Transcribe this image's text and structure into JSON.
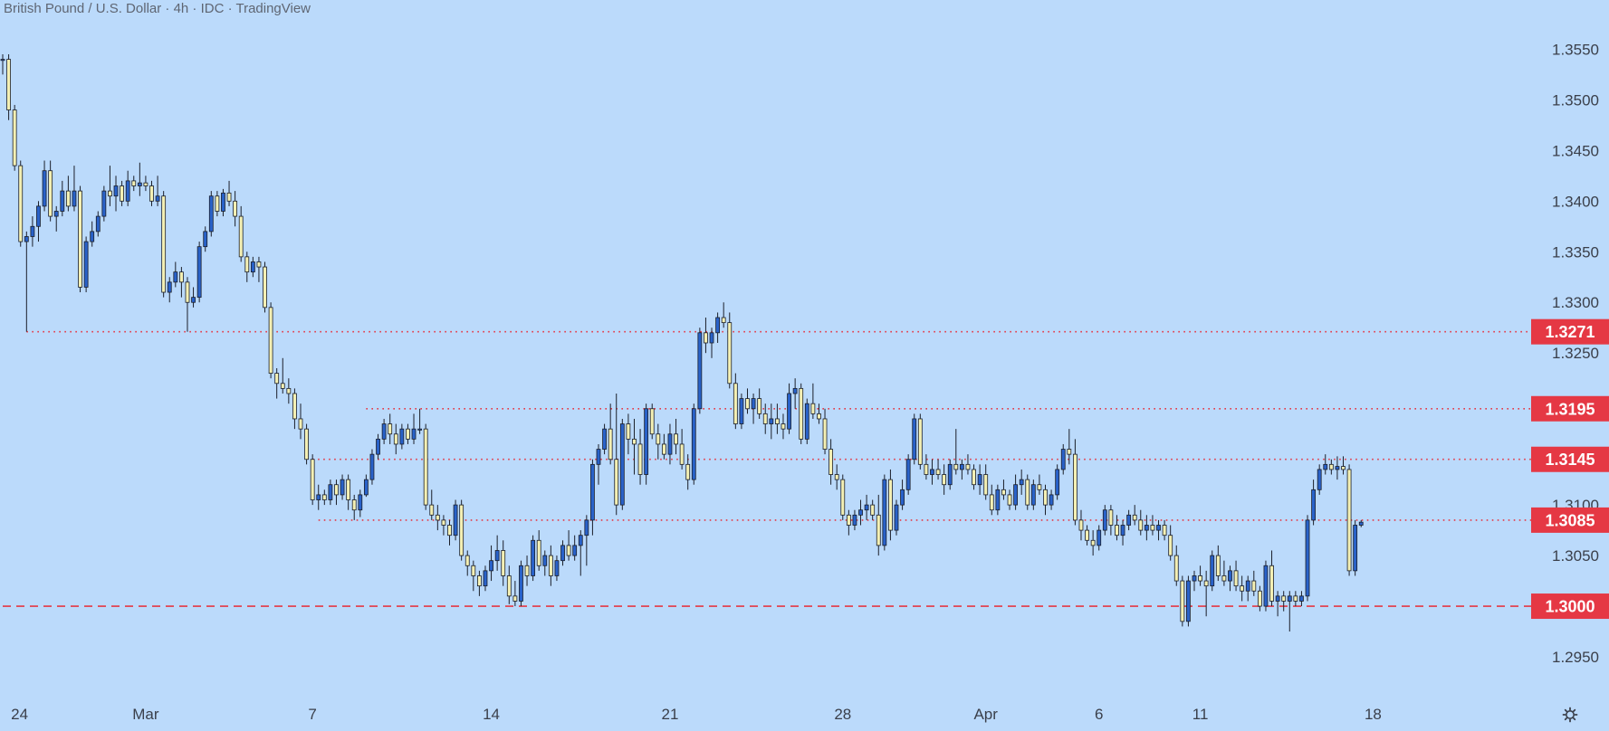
{
  "header": {
    "title": "British Pound / U.S. Dollar · 4h · IDC · TradingView"
  },
  "icons": {
    "settings": "gear-icon"
  },
  "colors": {
    "background": "#bbdafb",
    "candle_up": "#2962c9",
    "candle_down": "#f4f0b4",
    "candle_outline": "#1b1f2a",
    "level_line": "#e53844",
    "level_label_bg": "#e53844",
    "axis_text": "#3a3f4a"
  },
  "chart_data": {
    "type": "candlestick",
    "title": "British Pound / U.S. Dollar",
    "interval": "4h",
    "source": "IDC",
    "y_ticks": [
      "1.2950",
      "1.3000",
      "1.3050",
      "1.3100",
      "1.3150",
      "1.3200",
      "1.3250",
      "1.3300",
      "1.3350",
      "1.3400",
      "1.3450",
      "1.3500",
      "1.3550"
    ],
    "ylim": [
      1.2925,
      1.357
    ],
    "x_ticks": [
      "24",
      "Mar",
      "7",
      "14",
      "21",
      "28",
      "Apr",
      "6",
      "11",
      "18"
    ],
    "x_tick_bar_index": [
      1,
      24,
      52,
      82,
      112,
      141,
      165,
      184,
      201,
      230
    ],
    "levels": [
      {
        "value": 1.3271,
        "label": "1.3271",
        "style": "dotted",
        "start_bar": 4
      },
      {
        "value": 1.3195,
        "label": "1.3195",
        "style": "dotted",
        "start_bar": 61
      },
      {
        "value": 1.3145,
        "label": "1.3145",
        "style": "dotted",
        "start_bar": 52
      },
      {
        "value": 1.3085,
        "label": "1.3085",
        "style": "dotted",
        "start_bar": 53
      },
      {
        "value": 1.3,
        "label": "1.3000",
        "style": "dashed",
        "start_bar": 0
      }
    ],
    "candles": [
      [
        1.354,
        1.3545,
        1.3525,
        1.354
      ],
      [
        1.354,
        1.3545,
        1.348,
        1.349
      ],
      [
        1.349,
        1.3495,
        1.343,
        1.3435
      ],
      [
        1.3435,
        1.344,
        1.3355,
        1.336
      ],
      [
        1.336,
        1.337,
        1.3271,
        1.3365
      ],
      [
        1.3365,
        1.3385,
        1.3355,
        1.3375
      ],
      [
        1.3375,
        1.34,
        1.336,
        1.3395
      ],
      [
        1.3395,
        1.344,
        1.339,
        1.343
      ],
      [
        1.343,
        1.344,
        1.338,
        1.3385
      ],
      [
        1.3385,
        1.3395,
        1.337,
        1.339
      ],
      [
        1.339,
        1.342,
        1.3385,
        1.341
      ],
      [
        1.341,
        1.3425,
        1.339,
        1.3395
      ],
      [
        1.3395,
        1.3435,
        1.339,
        1.341
      ],
      [
        1.341,
        1.3415,
        1.331,
        1.3315
      ],
      [
        1.3315,
        1.3365,
        1.331,
        1.336
      ],
      [
        1.336,
        1.338,
        1.3355,
        1.337
      ],
      [
        1.337,
        1.339,
        1.3365,
        1.3385
      ],
      [
        1.3385,
        1.3415,
        1.338,
        1.341
      ],
      [
        1.341,
        1.3435,
        1.3395,
        1.3405
      ],
      [
        1.3405,
        1.3425,
        1.339,
        1.3415
      ],
      [
        1.3415,
        1.342,
        1.3395,
        1.34
      ],
      [
        1.34,
        1.343,
        1.3395,
        1.342
      ],
      [
        1.342,
        1.3425,
        1.341,
        1.3415
      ],
      [
        1.3415,
        1.3438,
        1.3405,
        1.3418
      ],
      [
        1.3418,
        1.3425,
        1.341,
        1.3415
      ],
      [
        1.3415,
        1.342,
        1.3395,
        1.34
      ],
      [
        1.34,
        1.3425,
        1.3395,
        1.3405
      ],
      [
        1.3405,
        1.341,
        1.3305,
        1.331
      ],
      [
        1.331,
        1.3325,
        1.33,
        1.332
      ],
      [
        1.332,
        1.334,
        1.3315,
        1.333
      ],
      [
        1.333,
        1.3335,
        1.3305,
        1.332
      ],
      [
        1.332,
        1.3325,
        1.3271,
        1.33
      ],
      [
        1.33,
        1.3315,
        1.3295,
        1.3305
      ],
      [
        1.3305,
        1.336,
        1.33,
        1.3355
      ],
      [
        1.3355,
        1.3375,
        1.335,
        1.337
      ],
      [
        1.337,
        1.341,
        1.3365,
        1.3405
      ],
      [
        1.3405,
        1.341,
        1.3385,
        1.339
      ],
      [
        1.339,
        1.3412,
        1.3385,
        1.3408
      ],
      [
        1.3408,
        1.342,
        1.3395,
        1.34
      ],
      [
        1.34,
        1.341,
        1.3375,
        1.3385
      ],
      [
        1.3385,
        1.3395,
        1.334,
        1.3345
      ],
      [
        1.3345,
        1.335,
        1.332,
        1.333
      ],
      [
        1.333,
        1.3345,
        1.3325,
        1.334
      ],
      [
        1.334,
        1.3345,
        1.332,
        1.3335
      ],
      [
        1.3335,
        1.334,
        1.329,
        1.3295
      ],
      [
        1.3295,
        1.33,
        1.3225,
        1.323
      ],
      [
        1.323,
        1.3235,
        1.3205,
        1.322
      ],
      [
        1.322,
        1.3245,
        1.321,
        1.3215
      ],
      [
        1.3215,
        1.3225,
        1.32,
        1.321
      ],
      [
        1.321,
        1.3215,
        1.3175,
        1.3185
      ],
      [
        1.3185,
        1.32,
        1.3165,
        1.3175
      ],
      [
        1.3175,
        1.318,
        1.314,
        1.3145
      ],
      [
        1.3145,
        1.315,
        1.31,
        1.3105
      ],
      [
        1.3105,
        1.312,
        1.3095,
        1.311
      ],
      [
        1.311,
        1.3115,
        1.31,
        1.3105
      ],
      [
        1.3105,
        1.3125,
        1.31,
        1.312
      ],
      [
        1.312,
        1.3125,
        1.31,
        1.311
      ],
      [
        1.311,
        1.313,
        1.3105,
        1.3125
      ],
      [
        1.3125,
        1.313,
        1.3095,
        1.3105
      ],
      [
        1.3105,
        1.311,
        1.3085,
        1.3095
      ],
      [
        1.3095,
        1.3115,
        1.3088,
        1.311
      ],
      [
        1.311,
        1.313,
        1.3108,
        1.3125
      ],
      [
        1.3125,
        1.3155,
        1.312,
        1.315
      ],
      [
        1.315,
        1.317,
        1.3145,
        1.3165
      ],
      [
        1.3165,
        1.3185,
        1.316,
        1.318
      ],
      [
        1.318,
        1.319,
        1.316,
        1.317
      ],
      [
        1.317,
        1.318,
        1.315,
        1.316
      ],
      [
        1.316,
        1.318,
        1.3155,
        1.3175
      ],
      [
        1.3175,
        1.318,
        1.316,
        1.3165
      ],
      [
        1.3165,
        1.319,
        1.316,
        1.3175
      ],
      [
        1.3175,
        1.3195,
        1.317,
        1.3175
      ],
      [
        1.3175,
        1.318,
        1.3095,
        1.31
      ],
      [
        1.31,
        1.3115,
        1.3085,
        1.309
      ],
      [
        1.309,
        1.31,
        1.3075,
        1.3085
      ],
      [
        1.3085,
        1.309,
        1.307,
        1.308
      ],
      [
        1.308,
        1.3085,
        1.306,
        1.307
      ],
      [
        1.307,
        1.3105,
        1.3065,
        1.31
      ],
      [
        1.31,
        1.3105,
        1.3045,
        1.305
      ],
      [
        1.305,
        1.3055,
        1.303,
        1.304
      ],
      [
        1.304,
        1.3045,
        1.3015,
        1.303
      ],
      [
        1.303,
        1.3035,
        1.301,
        1.302
      ],
      [
        1.302,
        1.304,
        1.3015,
        1.3035
      ],
      [
        1.3035,
        1.306,
        1.3025,
        1.3045
      ],
      [
        1.3045,
        1.307,
        1.3035,
        1.3055
      ],
      [
        1.3055,
        1.3065,
        1.302,
        1.303
      ],
      [
        1.303,
        1.304,
        1.3002,
        1.301
      ],
      [
        1.301,
        1.3025,
        1.3,
        1.3005
      ],
      [
        1.3005,
        1.3045,
        1.3,
        1.304
      ],
      [
        1.304,
        1.305,
        1.302,
        1.303
      ],
      [
        1.303,
        1.307,
        1.3025,
        1.3065
      ],
      [
        1.3065,
        1.3075,
        1.3035,
        1.304
      ],
      [
        1.304,
        1.3055,
        1.303,
        1.305
      ],
      [
        1.305,
        1.306,
        1.302,
        1.303
      ],
      [
        1.303,
        1.305,
        1.3025,
        1.3045
      ],
      [
        1.3045,
        1.3065,
        1.304,
        1.306
      ],
      [
        1.306,
        1.3075,
        1.3045,
        1.305
      ],
      [
        1.305,
        1.307,
        1.3045,
        1.306
      ],
      [
        1.306,
        1.3075,
        1.303,
        1.307
      ],
      [
        1.307,
        1.309,
        1.304,
        1.3085
      ],
      [
        1.3085,
        1.3145,
        1.307,
        1.314
      ],
      [
        1.314,
        1.316,
        1.312,
        1.3155
      ],
      [
        1.3155,
        1.318,
        1.315,
        1.3175
      ],
      [
        1.3175,
        1.32,
        1.314,
        1.3145
      ],
      [
        1.3145,
        1.321,
        1.309,
        1.31
      ],
      [
        1.31,
        1.3185,
        1.3095,
        1.318
      ],
      [
        1.318,
        1.319,
        1.315,
        1.3165
      ],
      [
        1.3165,
        1.3185,
        1.313,
        1.316
      ],
      [
        1.316,
        1.3175,
        1.312,
        1.313
      ],
      [
        1.313,
        1.32,
        1.312,
        1.3195
      ],
      [
        1.3195,
        1.32,
        1.3165,
        1.317
      ],
      [
        1.317,
        1.318,
        1.3145,
        1.316
      ],
      [
        1.316,
        1.317,
        1.3145,
        1.315
      ],
      [
        1.315,
        1.318,
        1.314,
        1.317
      ],
      [
        1.317,
        1.3185,
        1.315,
        1.316
      ],
      [
        1.316,
        1.3175,
        1.3135,
        1.314
      ],
      [
        1.314,
        1.315,
        1.3115,
        1.3125
      ],
      [
        1.3125,
        1.32,
        1.312,
        1.3195
      ],
      [
        1.3195,
        1.3275,
        1.319,
        1.327
      ],
      [
        1.327,
        1.3285,
        1.325,
        1.326
      ],
      [
        1.326,
        1.3275,
        1.3245,
        1.327
      ],
      [
        1.327,
        1.329,
        1.326,
        1.3285
      ],
      [
        1.3285,
        1.33,
        1.3275,
        1.328
      ],
      [
        1.328,
        1.329,
        1.3215,
        1.322
      ],
      [
        1.322,
        1.323,
        1.3175,
        1.318
      ],
      [
        1.318,
        1.321,
        1.3175,
        1.3205
      ],
      [
        1.3205,
        1.3215,
        1.319,
        1.3195
      ],
      [
        1.3195,
        1.321,
        1.318,
        1.3205
      ],
      [
        1.3205,
        1.3215,
        1.3185,
        1.319
      ],
      [
        1.319,
        1.32,
        1.317,
        1.318
      ],
      [
        1.318,
        1.32,
        1.3165,
        1.3185
      ],
      [
        1.3185,
        1.32,
        1.317,
        1.318
      ],
      [
        1.318,
        1.319,
        1.3165,
        1.3175
      ],
      [
        1.3175,
        1.322,
        1.317,
        1.321
      ],
      [
        1.321,
        1.3225,
        1.3195,
        1.3215
      ],
      [
        1.3215,
        1.322,
        1.316,
        1.3165
      ],
      [
        1.3165,
        1.3205,
        1.316,
        1.32
      ],
      [
        1.32,
        1.322,
        1.3185,
        1.319
      ],
      [
        1.319,
        1.32,
        1.318,
        1.3185
      ],
      [
        1.3185,
        1.3195,
        1.315,
        1.3155
      ],
      [
        1.3155,
        1.3165,
        1.312,
        1.313
      ],
      [
        1.313,
        1.314,
        1.3115,
        1.3125
      ],
      [
        1.3125,
        1.313,
        1.3085,
        1.309
      ],
      [
        1.309,
        1.3095,
        1.307,
        1.308
      ],
      [
        1.308,
        1.3095,
        1.3075,
        1.309
      ],
      [
        1.309,
        1.3105,
        1.308,
        1.3095
      ],
      [
        1.3095,
        1.311,
        1.3085,
        1.31
      ],
      [
        1.31,
        1.3105,
        1.3085,
        1.309
      ],
      [
        1.309,
        1.311,
        1.305,
        1.306
      ],
      [
        1.306,
        1.313,
        1.3055,
        1.3125
      ],
      [
        1.3125,
        1.3135,
        1.3065,
        1.3075
      ],
      [
        1.3075,
        1.3105,
        1.307,
        1.31
      ],
      [
        1.31,
        1.3125,
        1.3095,
        1.3115
      ],
      [
        1.3115,
        1.315,
        1.311,
        1.3145
      ],
      [
        1.3145,
        1.319,
        1.314,
        1.3185
      ],
      [
        1.3185,
        1.319,
        1.3135,
        1.314
      ],
      [
        1.314,
        1.315,
        1.3125,
        1.313
      ],
      [
        1.313,
        1.3145,
        1.312,
        1.3135
      ],
      [
        1.3135,
        1.3145,
        1.3125,
        1.313
      ],
      [
        1.313,
        1.314,
        1.311,
        1.312
      ],
      [
        1.312,
        1.3145,
        1.3115,
        1.314
      ],
      [
        1.314,
        1.3175,
        1.313,
        1.3135
      ],
      [
        1.3135,
        1.3145,
        1.3125,
        1.314
      ],
      [
        1.314,
        1.315,
        1.313,
        1.3135
      ],
      [
        1.3135,
        1.314,
        1.3115,
        1.312
      ],
      [
        1.312,
        1.314,
        1.311,
        1.313
      ],
      [
        1.313,
        1.314,
        1.3105,
        1.311
      ],
      [
        1.311,
        1.312,
        1.309,
        1.3095
      ],
      [
        1.3095,
        1.312,
        1.309,
        1.3115
      ],
      [
        1.3115,
        1.3125,
        1.3105,
        1.311
      ],
      [
        1.311,
        1.3115,
        1.3095,
        1.31
      ],
      [
        1.31,
        1.313,
        1.3095,
        1.312
      ],
      [
        1.312,
        1.3135,
        1.311,
        1.3125
      ],
      [
        1.3125,
        1.313,
        1.3095,
        1.31
      ],
      [
        1.31,
        1.3125,
        1.3095,
        1.312
      ],
      [
        1.312,
        1.313,
        1.311,
        1.3115
      ],
      [
        1.3115,
        1.312,
        1.309,
        1.31
      ],
      [
        1.31,
        1.3115,
        1.3095,
        1.311
      ],
      [
        1.311,
        1.314,
        1.3105,
        1.3135
      ],
      [
        1.3135,
        1.316,
        1.313,
        1.3155
      ],
      [
        1.3155,
        1.3175,
        1.314,
        1.315
      ],
      [
        1.315,
        1.3165,
        1.308,
        1.3085
      ],
      [
        1.3085,
        1.3095,
        1.3065,
        1.3075
      ],
      [
        1.3075,
        1.308,
        1.306,
        1.3065
      ],
      [
        1.3065,
        1.3075,
        1.305,
        1.306
      ],
      [
        1.306,
        1.308,
        1.3055,
        1.3075
      ],
      [
        1.3075,
        1.31,
        1.307,
        1.3095
      ],
      [
        1.3095,
        1.31,
        1.307,
        1.308
      ],
      [
        1.308,
        1.309,
        1.3065,
        1.307
      ],
      [
        1.307,
        1.3085,
        1.306,
        1.308
      ],
      [
        1.308,
        1.3095,
        1.3075,
        1.309
      ],
      [
        1.309,
        1.31,
        1.308,
        1.3085
      ],
      [
        1.3085,
        1.3095,
        1.307,
        1.3075
      ],
      [
        1.3075,
        1.309,
        1.3065,
        1.308
      ],
      [
        1.308,
        1.309,
        1.307,
        1.3075
      ],
      [
        1.3075,
        1.3085,
        1.3065,
        1.308
      ],
      [
        1.308,
        1.3085,
        1.3065,
        1.307
      ],
      [
        1.307,
        1.308,
        1.3045,
        1.305
      ],
      [
        1.305,
        1.306,
        1.302,
        1.3025
      ],
      [
        1.3025,
        1.303,
        1.298,
        1.2985
      ],
      [
        1.2985,
        1.303,
        1.298,
        1.3025
      ],
      [
        1.3025,
        1.3035,
        1.3015,
        1.303
      ],
      [
        1.303,
        1.304,
        1.302,
        1.3025
      ],
      [
        1.3025,
        1.3035,
        1.299,
        1.302
      ],
      [
        1.302,
        1.3055,
        1.3015,
        1.305
      ],
      [
        1.305,
        1.306,
        1.3025,
        1.303
      ],
      [
        1.303,
        1.3045,
        1.302,
        1.3025
      ],
      [
        1.3025,
        1.304,
        1.3015,
        1.3035
      ],
      [
        1.3035,
        1.3045,
        1.3015,
        1.302
      ],
      [
        1.302,
        1.303,
        1.3005,
        1.3015
      ],
      [
        1.3015,
        1.303,
        1.3005,
        1.3025
      ],
      [
        1.3025,
        1.3035,
        1.301,
        1.3015
      ],
      [
        1.3015,
        1.302,
        1.2995,
        1.3
      ],
      [
        1.3,
        1.3045,
        1.2995,
        1.304
      ],
      [
        1.304,
        1.3055,
        1.3,
        1.3005
      ],
      [
        1.3005,
        1.3015,
        1.299,
        1.301
      ],
      [
        1.301,
        1.3015,
        1.2995,
        1.3005
      ],
      [
        1.3005,
        1.3015,
        1.2975,
        1.301
      ],
      [
        1.301,
        1.3015,
        1.3,
        1.3005
      ],
      [
        1.3005,
        1.3015,
        1.3,
        1.301
      ],
      [
        1.301,
        1.309,
        1.3005,
        1.3085
      ],
      [
        1.3085,
        1.3125,
        1.308,
        1.3115
      ],
      [
        1.3115,
        1.314,
        1.311,
        1.3135
      ],
      [
        1.3135,
        1.315,
        1.313,
        1.314
      ],
      [
        1.314,
        1.3145,
        1.313,
        1.3135
      ],
      [
        1.3135,
        1.3148,
        1.3125,
        1.3138
      ],
      [
        1.3138,
        1.3148,
        1.313,
        1.3135
      ],
      [
        1.3135,
        1.314,
        1.303,
        1.3035
      ],
      [
        1.3035,
        1.3085,
        1.303,
        1.308
      ],
      [
        1.308,
        1.3085,
        1.3078,
        1.3083
      ]
    ]
  }
}
